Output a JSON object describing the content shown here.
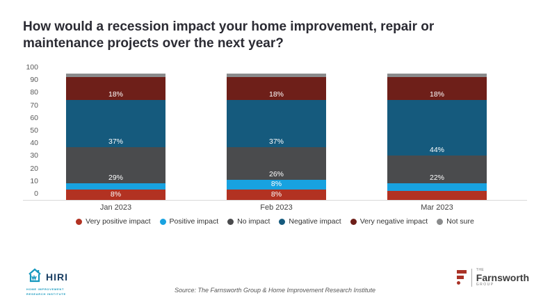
{
  "title_lines": [
    "How would a recession impact your home improvement, repair or",
    "maintenance projects over the next year?"
  ],
  "chart_data": {
    "type": "bar",
    "stacked": true,
    "title": "How would a recession impact your home improvement, repair or maintenance projects over the next year?",
    "categories": [
      "Jan 2023",
      "Feb 2023",
      "Mar 2023"
    ],
    "y_ticks": [
      "0",
      "10",
      "20",
      "30",
      "40",
      "50",
      "60",
      "70",
      "80",
      "90",
      "100"
    ],
    "ylim": [
      0,
      100
    ],
    "grid": false,
    "legend_position": "bottom",
    "series": [
      {
        "name": "Very positive impact",
        "color": "#b23222",
        "values": [
          8,
          8,
          7
        ],
        "labels": [
          "8%",
          "8%",
          null
        ]
      },
      {
        "name": "Positive impact",
        "color": "#18a2e0",
        "values": [
          5,
          8,
          6
        ],
        "labels": [
          null,
          "8%",
          null
        ]
      },
      {
        "name": "No impact",
        "color": "#4a4b4d",
        "values": [
          29,
          26,
          22
        ],
        "labels": [
          "29%",
          "26%",
          "22%"
        ]
      },
      {
        "name": "Negative impact",
        "color": "#155a7d",
        "values": [
          37,
          37,
          44
        ],
        "labels": [
          "37%",
          "37%",
          "44%"
        ]
      },
      {
        "name": "Very negative impact",
        "color": "#6e1f19",
        "values": [
          18,
          18,
          18
        ],
        "labels": [
          "18%",
          "18%",
          "18%"
        ]
      },
      {
        "name": "Not sure",
        "color": "#8a8b8c",
        "values": [
          3,
          3,
          3
        ],
        "labels": [
          null,
          null,
          null
        ]
      }
    ]
  },
  "footer": {
    "source": "Source: The Farnsworth Group & Home Improvement Research Institute",
    "hiri": {
      "wordmark": "HIRI",
      "subtitle_line1": "HOME IMPROVEMENT",
      "subtitle_line2": "RESEARCH INSTITUTE"
    },
    "farnsworth": {
      "the": "THE",
      "name": "Farnsworth",
      "group": "GROUP"
    }
  }
}
